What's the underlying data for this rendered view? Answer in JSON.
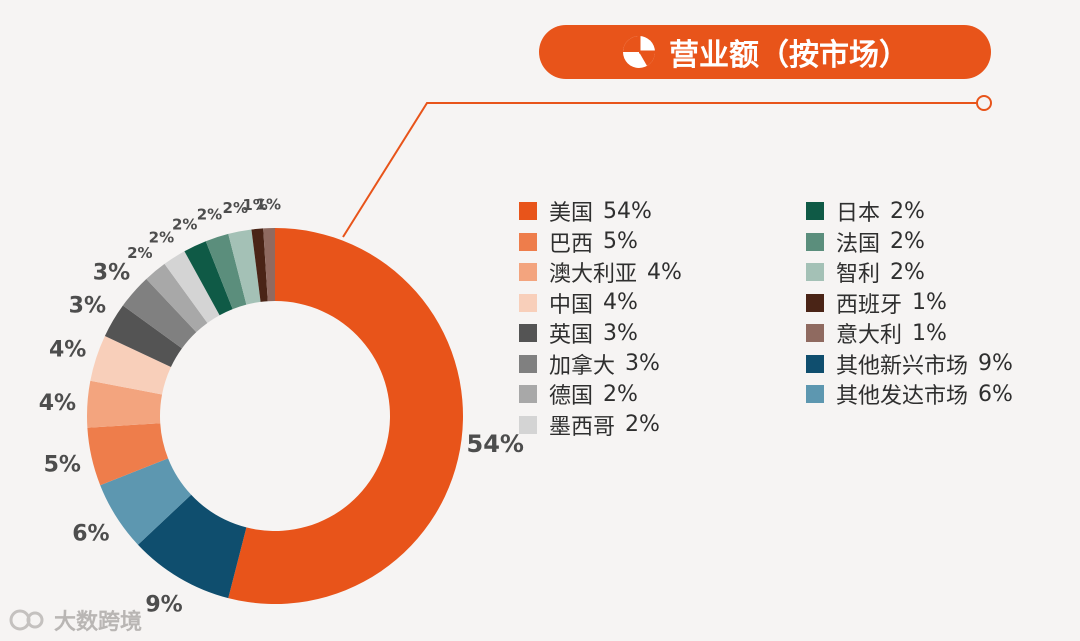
{
  "header": {
    "title": "营业额（按市场）"
  },
  "watermark": {
    "text": "大数跨境"
  },
  "chart_data": {
    "type": "pie",
    "title": "营业额（按市场）",
    "slices": [
      {
        "name": "美国",
        "value": 54,
        "label": "54%",
        "color": "#e8541a"
      },
      {
        "name": "其他新兴市场",
        "value": 9,
        "label": "9%",
        "color": "#0f4e6e"
      },
      {
        "name": "其他发达市场",
        "value": 6,
        "label": "6%",
        "color": "#5d97b0"
      },
      {
        "name": "巴西",
        "value": 5,
        "label": "5%",
        "color": "#ee7d4b"
      },
      {
        "name": "澳大利亚",
        "value": 4,
        "label": "4%",
        "color": "#f3a47e"
      },
      {
        "name": "中国",
        "value": 4,
        "label": "4%",
        "color": "#f8cfba"
      },
      {
        "name": "英国",
        "value": 3,
        "label": "3%",
        "color": "#545454"
      },
      {
        "name": "加拿大",
        "value": 3,
        "label": "3%",
        "color": "#808080"
      },
      {
        "name": "德国",
        "value": 2,
        "label": "2%",
        "color": "#a8a8a8"
      },
      {
        "name": "墨西哥",
        "value": 2,
        "label": "2%",
        "color": "#d4d4d4"
      },
      {
        "name": "日本",
        "value": 2,
        "label": "2%",
        "color": "#0f5a46"
      },
      {
        "name": "法国",
        "value": 2,
        "label": "2%",
        "color": "#5b8e7c"
      },
      {
        "name": "智利",
        "value": 2,
        "label": "2%",
        "color": "#a4c1b6"
      },
      {
        "name": "西班牙",
        "value": 1,
        "label": "1%",
        "color": "#4a2416"
      },
      {
        "name": "意大利",
        "value": 1,
        "label": "1%",
        "color": "#8f6a60"
      }
    ]
  },
  "legend": {
    "left": [
      {
        "name": "美国",
        "pct": "54%",
        "color": "#e8541a"
      },
      {
        "name": "巴西",
        "pct": "5%",
        "color": "#ee7d4b"
      },
      {
        "name": "澳大利亚",
        "pct": "4%",
        "color": "#f3a47e"
      },
      {
        "name": "中国",
        "pct": "4%",
        "color": "#f8cfba"
      },
      {
        "name": "英国",
        "pct": "3%",
        "color": "#545454"
      },
      {
        "name": "加拿大",
        "pct": "3%",
        "color": "#808080"
      },
      {
        "name": "德国",
        "pct": "2%",
        "color": "#a8a8a8"
      },
      {
        "name": "墨西哥",
        "pct": "2%",
        "color": "#d4d4d4"
      }
    ],
    "right": [
      {
        "name": "日本",
        "pct": "2%",
        "color": "#0f5a46"
      },
      {
        "name": "法国",
        "pct": "2%",
        "color": "#5b8e7c"
      },
      {
        "name": "智利",
        "pct": "2%",
        "color": "#a4c1b6"
      },
      {
        "name": "西班牙",
        "pct": "1%",
        "color": "#4a2416"
      },
      {
        "name": "意大利",
        "pct": "1%",
        "color": "#8f6a60"
      },
      {
        "name": "其他新兴市场",
        "pct": "9%",
        "color": "#0f4e6e"
      },
      {
        "name": "其他发达市场",
        "pct": "6%",
        "color": "#5d97b0"
      }
    ]
  },
  "colors": {
    "accent": "#e8541a",
    "background": "#f6f4f3"
  }
}
